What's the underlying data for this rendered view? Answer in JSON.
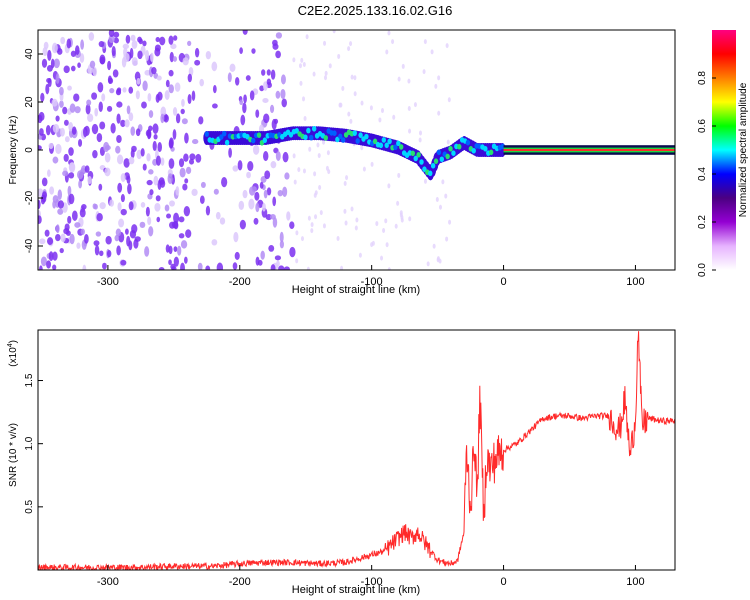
{
  "title": "C2E2.2025.133.16.02.G16",
  "chart_data": [
    {
      "type": "heatmap",
      "title": "C2E2.2025.133.16.02.G16",
      "xlabel": "Height of straight line (km)",
      "ylabel": "Frequency (Hz)",
      "xlim": [
        -353,
        130
      ],
      "ylim": [
        -50,
        50
      ],
      "xticks": [
        -300,
        -200,
        -100,
        0,
        100
      ],
      "yticks": [
        -40,
        -20,
        0,
        20,
        40
      ],
      "colorbar": {
        "label": "Normalized spectral amplitude",
        "ticks": [
          0.0,
          0.2,
          0.4,
          0.6,
          0.8
        ],
        "range": [
          0,
          1
        ],
        "stops": [
          "#ffffff",
          "#e6b3ff",
          "#9400d3",
          "#4b0082",
          "#0000ff",
          "#00ffff",
          "#00ff00",
          "#ffff00",
          "#ff7f00",
          "#ff0000",
          "#ff0080"
        ]
      },
      "dominant_frequency_track": [
        {
          "x": -225,
          "y": 5
        },
        {
          "x": -200,
          "y": 5
        },
        {
          "x": -180,
          "y": 5
        },
        {
          "x": -160,
          "y": 7
        },
        {
          "x": -140,
          "y": 7
        },
        {
          "x": -120,
          "y": 6
        },
        {
          "x": -100,
          "y": 4
        },
        {
          "x": -80,
          "y": 1
        },
        {
          "x": -65,
          "y": -3
        },
        {
          "x": -55,
          "y": -10
        },
        {
          "x": -50,
          "y": -3
        },
        {
          "x": -40,
          "y": -1
        },
        {
          "x": -30,
          "y": 3
        },
        {
          "x": -20,
          "y": 0
        },
        {
          "x": 0,
          "y": 0
        },
        {
          "x": 50,
          "y": 0
        },
        {
          "x": 90,
          "y": 0
        },
        {
          "x": 100,
          "y": 0
        },
        {
          "x": 130,
          "y": 0
        }
      ],
      "noise_region_x": [
        -353,
        -160
      ],
      "track_color": "#ff2a2a"
    },
    {
      "type": "line",
      "xlabel": "Height of straight line (km)",
      "ylabel": "SNR (10 * v/v)",
      "y_multiplier": "(x10",
      "y_multiplier_exp": "4",
      "y_multiplier_close": ")",
      "xlim": [
        -353,
        130
      ],
      "ylim": [
        0,
        1.9
      ],
      "xticks": [
        -300,
        -200,
        -100,
        0,
        100
      ],
      "yticks": [
        0.5,
        1.0,
        1.5
      ],
      "line_color": "#ff2a2a",
      "series": [
        {
          "x": [
            -353,
            -330,
            -300,
            -280,
            -250,
            -220,
            -200,
            -180,
            -160,
            -140,
            -120,
            -110,
            -100,
            -90,
            -80,
            -75,
            -70,
            -65,
            -60,
            -55,
            -50,
            -45,
            -40,
            -35,
            -30,
            -28,
            -25,
            -22,
            -20,
            -18,
            -15,
            -13,
            -10,
            -5,
            0,
            10,
            20,
            30,
            40,
            50,
            60,
            70,
            80,
            88,
            92,
            96,
            100,
            102,
            105,
            110,
            120,
            130
          ],
          "y": [
            0.02,
            0.02,
            0.02,
            0.02,
            0.03,
            0.03,
            0.05,
            0.06,
            0.06,
            0.05,
            0.06,
            0.09,
            0.12,
            0.15,
            0.25,
            0.3,
            0.25,
            0.3,
            0.22,
            0.15,
            0.08,
            0.06,
            0.05,
            0.07,
            0.3,
            0.95,
            0.5,
            1.05,
            0.55,
            1.4,
            0.4,
            0.9,
            0.8,
            0.9,
            0.95,
            1.0,
            1.1,
            1.2,
            1.22,
            1.22,
            1.2,
            1.22,
            1.22,
            1.1,
            1.35,
            0.9,
            1.2,
            1.9,
            1.15,
            1.2,
            1.18,
            1.18
          ]
        }
      ]
    }
  ]
}
